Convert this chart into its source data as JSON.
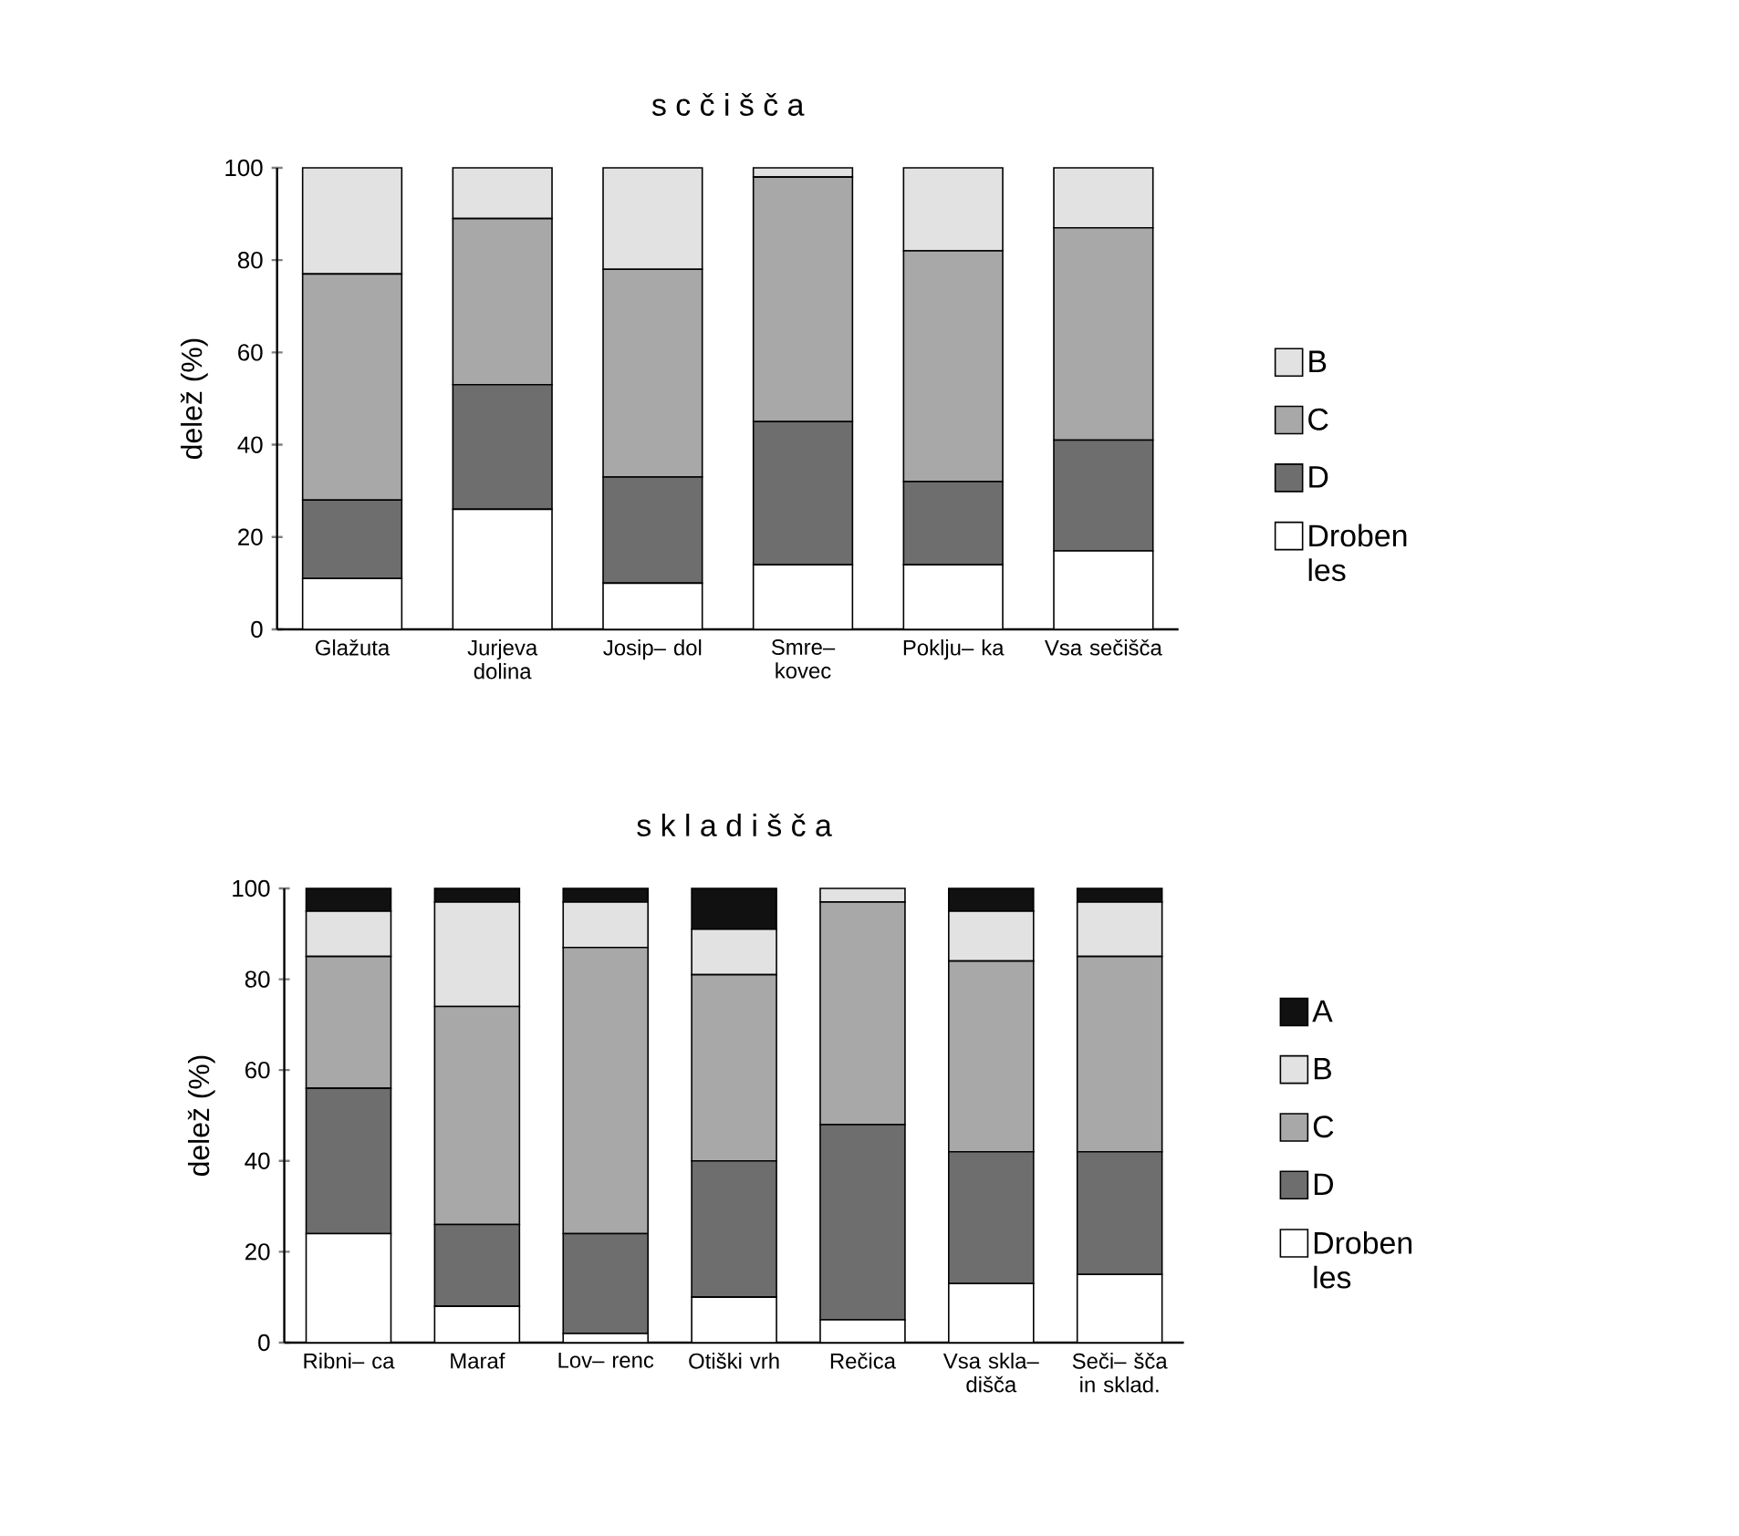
{
  "chart_data": [
    {
      "type": "bar",
      "stacked": true,
      "title": "s c č i š č a",
      "ylabel": "delež (%)",
      "categories": [
        "Glažuta",
        "Jurjeva dolina",
        "Josip– dol",
        "Smre– kovec",
        "Poklju– ka",
        "Vsa sečišča"
      ],
      "ylim": [
        0,
        100
      ],
      "yticks": [
        0,
        20,
        40,
        60,
        80,
        100
      ],
      "legend": "right",
      "series": [
        {
          "name": "Droben les",
          "color": "#ffffff",
          "values": [
            11,
            26,
            10,
            14,
            14,
            17
          ]
        },
        {
          "name": "D",
          "color": "#6e6e6e",
          "values": [
            17,
            27,
            23,
            31,
            18,
            24
          ]
        },
        {
          "name": "C",
          "color": "#a8a8a8",
          "values": [
            49,
            36,
            45,
            53,
            50,
            46
          ]
        },
        {
          "name": "B",
          "color": "#e2e2e2",
          "values": [
            23,
            11,
            22,
            2,
            18,
            13
          ]
        }
      ]
    },
    {
      "type": "bar",
      "stacked": true,
      "title": "s k l a d i š č a",
      "ylabel": "delež (%)",
      "categories": [
        "Ribni– ca",
        "Maraf",
        "Lov– renc",
        "Otiški vrh",
        "Rečica",
        "Vsa skla– dišča",
        "Seči– šča in sklad."
      ],
      "ylim": [
        0,
        100
      ],
      "yticks": [
        0,
        20,
        40,
        60,
        80,
        100
      ],
      "legend": "right",
      "series": [
        {
          "name": "Droben les",
          "color": "#ffffff",
          "values": [
            24,
            8,
            2,
            10,
            5,
            13,
            15
          ]
        },
        {
          "name": "D",
          "color": "#6e6e6e",
          "values": [
            32,
            18,
            22,
            30,
            43,
            29,
            27
          ]
        },
        {
          "name": "C",
          "color": "#a8a8a8",
          "values": [
            29,
            48,
            63,
            41,
            49,
            42,
            43
          ]
        },
        {
          "name": "B",
          "color": "#e2e2e2",
          "values": [
            10,
            23,
            10,
            10,
            3,
            11,
            12
          ]
        },
        {
          "name": "A",
          "color": "#111111",
          "values": [
            5,
            3,
            3,
            9,
            null,
            5,
            3
          ]
        }
      ]
    }
  ]
}
